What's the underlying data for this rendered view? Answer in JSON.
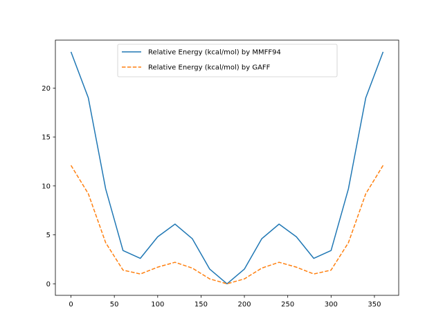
{
  "chart_data": {
    "type": "line",
    "title": "",
    "xlabel": "",
    "ylabel": "",
    "xlim": [
      -18,
      378
    ],
    "ylim": [
      -1.18,
      24.9
    ],
    "x_ticks": [
      0,
      50,
      100,
      150,
      200,
      250,
      300,
      350
    ],
    "y_ticks": [
      0,
      5,
      10,
      15,
      20
    ],
    "x_tick_labels": [
      "0",
      "50",
      "100",
      "150",
      "200",
      "250",
      "300",
      "350"
    ],
    "y_tick_labels": [
      "0",
      "5",
      "10",
      "15",
      "20"
    ],
    "grid": false,
    "legend_position": "top-center",
    "x": [
      0,
      20,
      40,
      60,
      80,
      100,
      120,
      140,
      160,
      180,
      200,
      220,
      240,
      260,
      280,
      300,
      320,
      340,
      360
    ],
    "series": [
      {
        "name": "Relative Energy (kcal/mol) by MMFF94",
        "color": "#1f77b4",
        "linestyle": "solid",
        "values": [
          23.7,
          19.0,
          9.7,
          3.4,
          2.6,
          4.8,
          6.1,
          4.6,
          1.5,
          0.0,
          1.5,
          4.6,
          6.1,
          4.8,
          2.6,
          3.4,
          9.7,
          19.0,
          23.7
        ]
      },
      {
        "name": "Relative Energy (kcal/mol) by GAFF",
        "color": "#ff7f0e",
        "linestyle": "dashed",
        "values": [
          12.1,
          9.2,
          4.2,
          1.4,
          1.0,
          1.7,
          2.2,
          1.6,
          0.5,
          0.0,
          0.5,
          1.6,
          2.2,
          1.7,
          1.0,
          1.4,
          4.2,
          9.2,
          12.1
        ]
      }
    ]
  }
}
